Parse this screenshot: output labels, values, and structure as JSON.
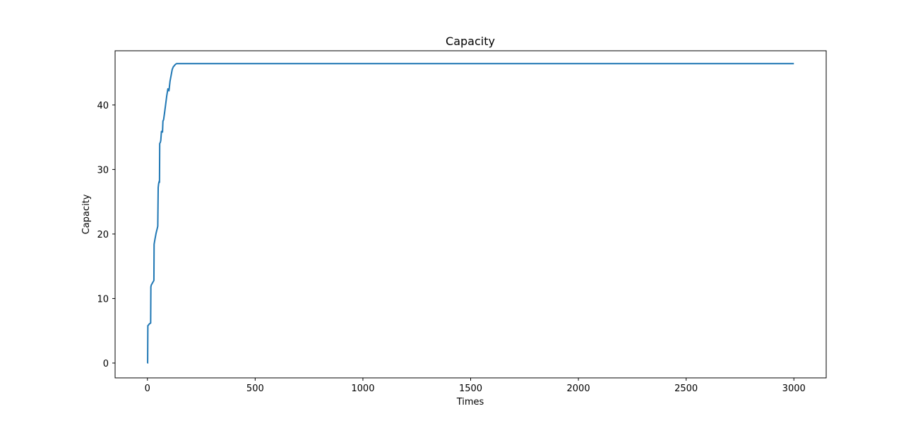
{
  "chart_data": {
    "type": "line",
    "title": "Capacity",
    "xlabel": "Times",
    "ylabel": "Capacity",
    "xlim": [
      -150,
      3150
    ],
    "ylim": [
      -2.3,
      48.4
    ],
    "xticks": [
      0,
      500,
      1000,
      1500,
      2000,
      2500,
      3000
    ],
    "yticks": [
      0,
      10,
      20,
      30,
      40
    ],
    "grid": false,
    "legend": "none",
    "series": [
      {
        "color": "#1f77b4",
        "x": [
          0,
          1,
          2,
          3,
          5,
          10,
          15,
          16,
          18,
          25,
          30,
          31,
          35,
          40,
          48,
          50,
          52,
          55,
          56,
          57,
          58,
          60,
          62,
          65,
          70,
          72,
          75,
          80,
          85,
          90,
          95,
          100,
          102,
          105,
          110,
          115,
          120,
          125,
          130,
          135,
          140,
          150,
          200,
          500,
          1000,
          1500,
          2000,
          2500,
          3000
        ],
        "y": [
          0,
          0,
          5.8,
          5.8,
          5.9,
          6.1,
          6.2,
          11.8,
          12.1,
          12.5,
          12.8,
          18.4,
          19.2,
          20.1,
          21.2,
          27.2,
          27.8,
          28.2,
          28.0,
          34.0,
          34.1,
          34.2,
          34.5,
          35.9,
          35.8,
          37.5,
          37.7,
          38.9,
          40.2,
          41.5,
          42.5,
          42.2,
          42.8,
          43.7,
          44.6,
          45.5,
          45.9,
          46.1,
          46.3,
          46.4,
          46.4,
          46.4,
          46.4,
          46.4,
          46.4,
          46.4,
          46.4,
          46.4,
          46.4
        ]
      }
    ]
  }
}
